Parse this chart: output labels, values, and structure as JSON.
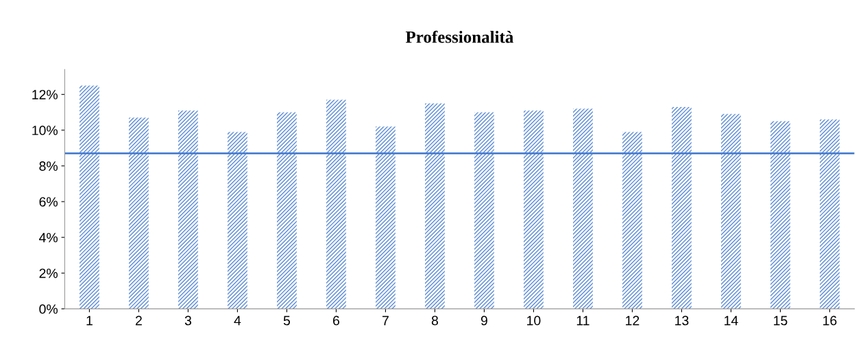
{
  "chart_data": {
    "type": "bar",
    "title": "Professionalità",
    "categories": [
      "1",
      "2",
      "3",
      "4",
      "5",
      "6",
      "7",
      "8",
      "9",
      "10",
      "11",
      "12",
      "13",
      "14",
      "15",
      "16"
    ],
    "values": [
      12.5,
      10.7,
      11.1,
      9.9,
      11.0,
      11.7,
      10.2,
      11.5,
      11.0,
      11.1,
      11.2,
      9.9,
      11.3,
      10.9,
      10.5,
      10.6
    ],
    "color": "#5b8bd6",
    "ylim": [
      0,
      13.4
    ],
    "yticks": [
      {
        "value": 0,
        "label": "0%"
      },
      {
        "value": 2,
        "label": "2%"
      },
      {
        "value": 4,
        "label": "4%"
      },
      {
        "value": 6,
        "label": "6%"
      },
      {
        "value": 8,
        "label": "8%"
      },
      {
        "value": 10,
        "label": "10%"
      },
      {
        "value": 12,
        "label": "12%"
      }
    ],
    "ref_lines": [
      {
        "axis": "y",
        "value": 8.7,
        "color": "#4a7fd0"
      }
    ],
    "grid": false,
    "legend": false
  }
}
